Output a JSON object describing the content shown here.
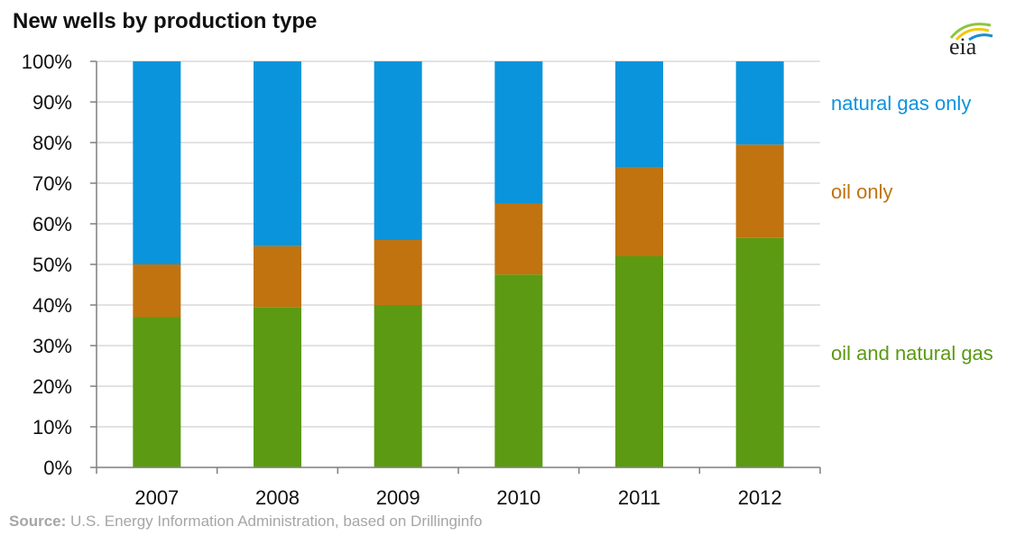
{
  "chart_data": {
    "type": "bar",
    "stacked": true,
    "title": "New wells by production type",
    "categories": [
      "2007",
      "2008",
      "2009",
      "2010",
      "2011",
      "2012"
    ],
    "series": [
      {
        "name": "oil and natural gas",
        "color": "#5b9a12",
        "values": [
          37,
          39.5,
          40,
          47.5,
          52,
          56.5
        ]
      },
      {
        "name": "oil only",
        "color": "#c0730f",
        "values": [
          13,
          15,
          16,
          17.5,
          22,
          23
        ]
      },
      {
        "name": "natural gas only",
        "color": "#0a94db",
        "values": [
          50,
          45.5,
          44,
          35,
          26,
          20.5
        ]
      }
    ],
    "yticks": [
      "0%",
      "10%",
      "20%",
      "30%",
      "40%",
      "50%",
      "60%",
      "70%",
      "80%",
      "90%",
      "100%"
    ],
    "ylim": [
      0,
      100
    ],
    "grid": true,
    "legend_placement": "right",
    "source_label": "Source:",
    "source_text": " U.S. Energy Information Administration, based on Drillinginfo"
  },
  "logo": {
    "text": "eia"
  }
}
